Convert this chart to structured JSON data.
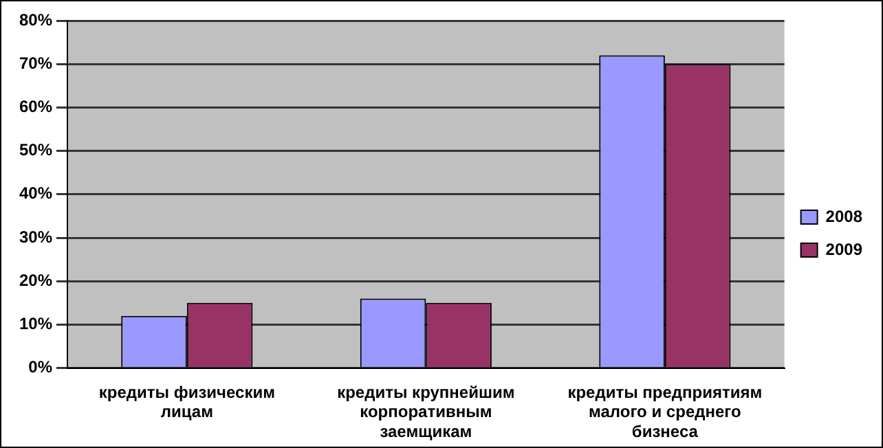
{
  "chart_data": {
    "type": "bar",
    "categories": [
      "кредиты физическим лицам",
      "кредиты крупнейшим корпоративным заемщикам",
      "кредиты предприятиям малого и среднего бизнеса"
    ],
    "series": [
      {
        "name": "2008",
        "color": "#9999ff",
        "values": [
          12,
          16,
          72
        ]
      },
      {
        "name": "2009",
        "color": "#993366",
        "values": [
          15,
          15,
          70
        ]
      }
    ],
    "ylim": [
      0,
      80
    ],
    "yticks": [
      {
        "value": 0,
        "label": "0%"
      },
      {
        "value": 10,
        "label": "10%"
      },
      {
        "value": 20,
        "label": "20%"
      },
      {
        "value": 30,
        "label": "30%"
      },
      {
        "value": 40,
        "label": "40%"
      },
      {
        "value": 50,
        "label": "50%"
      },
      {
        "value": 60,
        "label": "60%"
      },
      {
        "value": 70,
        "label": "70%"
      },
      {
        "value": 80,
        "label": "80%"
      }
    ],
    "grid": "y",
    "legend": "right"
  }
}
